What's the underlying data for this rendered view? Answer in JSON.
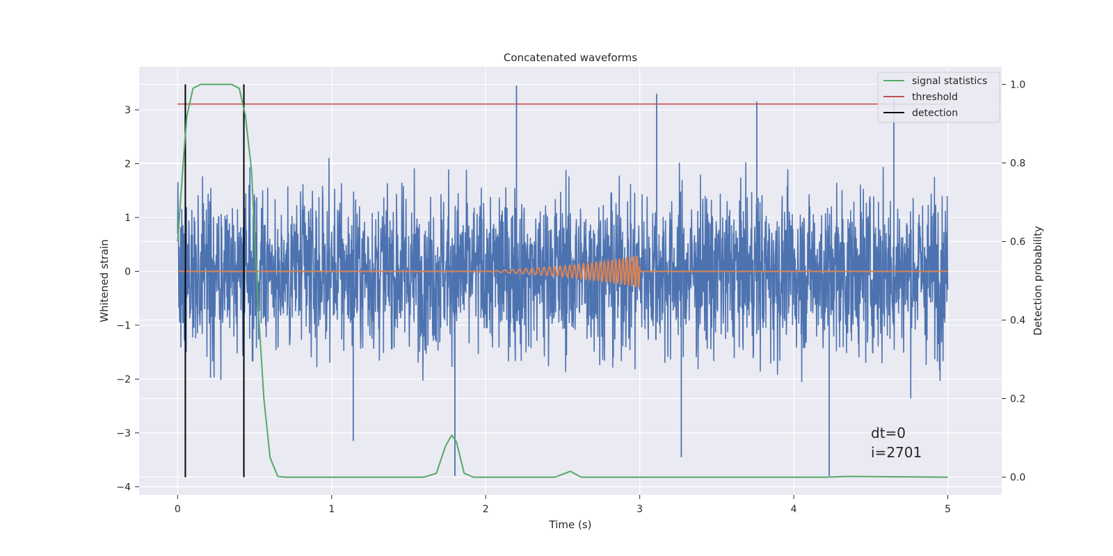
{
  "chart_data": {
    "type": "line",
    "title": "Concatenated waveforms",
    "xlabel": "Time (s)",
    "ylabel_left": "Whitened strain",
    "ylabel_right": "Detection probability",
    "xlim": [
      -0.25,
      5.35
    ],
    "ylim_left": [
      -4.15,
      3.8
    ],
    "ylim_right": [
      -0.045,
      1.045
    ],
    "xticks": [
      0,
      1,
      2,
      3,
      4,
      5
    ],
    "xtick_labels": [
      "0",
      "1",
      "2",
      "3",
      "4",
      "5"
    ],
    "yticks_left": [
      -4,
      -3,
      -2,
      -1,
      0,
      1,
      2,
      3
    ],
    "ytick_labels_left": [
      "−4",
      "−3",
      "−2",
      "−1",
      "0",
      "1",
      "2",
      "3"
    ],
    "yticks_right": [
      0.0,
      0.2,
      0.4,
      0.6,
      0.8,
      1.0
    ],
    "ytick_labels_right": [
      "0.0",
      "0.2",
      "0.4",
      "0.6",
      "0.8",
      "1.0"
    ],
    "grid": true,
    "legend_position": "top-right",
    "annotation": [
      "dt=0",
      "i=2701"
    ],
    "series": [
      {
        "name": "",
        "axis": "left",
        "color": "#4c72b0",
        "kind": "whitened strain noise",
        "x_range": [
          0,
          5
        ],
        "typical_range": [
          -2.5,
          2.6
        ],
        "notable_peaks": [
          {
            "x": 2.2,
            "y": 3.45
          },
          {
            "x": 3.11,
            "y": 3.3
          },
          {
            "x": 3.76,
            "y": 3.15
          },
          {
            "x": 4.65,
            "y": 3.2
          },
          {
            "x": 1.14,
            "y": -3.15
          },
          {
            "x": 1.8,
            "y": -3.8
          },
          {
            "x": 3.27,
            "y": -3.45
          },
          {
            "x": 4.23,
            "y": -3.8
          }
        ]
      },
      {
        "name": "",
        "axis": "left",
        "color": "#dd8452",
        "kind": "injected chirp",
        "points": [
          {
            "x": 0,
            "y": 0
          },
          {
            "x": 2.0,
            "y": 0
          },
          {
            "x": 2.5,
            "y": 0.1
          },
          {
            "x": 2.8,
            "y": 0.2
          },
          {
            "x": 3.0,
            "y": 0.3
          },
          {
            "x": 5,
            "y": 0
          }
        ]
      },
      {
        "name": "signal statistics",
        "axis": "right",
        "color": "#55a868",
        "points": [
          {
            "x": 0,
            "y": 0.6
          },
          {
            "x": 0.04,
            "y": 0.82
          },
          {
            "x": 0.06,
            "y": 0.92
          },
          {
            "x": 0.1,
            "y": 0.99
          },
          {
            "x": 0.15,
            "y": 1.0
          },
          {
            "x": 0.35,
            "y": 1.0
          },
          {
            "x": 0.4,
            "y": 0.99
          },
          {
            "x": 0.44,
            "y": 0.92
          },
          {
            "x": 0.48,
            "y": 0.78
          },
          {
            "x": 0.52,
            "y": 0.45
          },
          {
            "x": 0.56,
            "y": 0.2
          },
          {
            "x": 0.6,
            "y": 0.05
          },
          {
            "x": 0.65,
            "y": 0.002
          },
          {
            "x": 0.7,
            "y": 0.0
          },
          {
            "x": 1.6,
            "y": 0.0
          },
          {
            "x": 1.68,
            "y": 0.01
          },
          {
            "x": 1.74,
            "y": 0.08
          },
          {
            "x": 1.78,
            "y": 0.107
          },
          {
            "x": 1.81,
            "y": 0.09
          },
          {
            "x": 1.86,
            "y": 0.01
          },
          {
            "x": 1.92,
            "y": 0.0
          },
          {
            "x": 2.45,
            "y": 0.0
          },
          {
            "x": 2.55,
            "y": 0.015
          },
          {
            "x": 2.62,
            "y": 0.0
          },
          {
            "x": 4.2,
            "y": 0.0
          },
          {
            "x": 4.35,
            "y": 0.002
          },
          {
            "x": 5.0,
            "y": 0.0
          }
        ]
      },
      {
        "name": "threshold",
        "axis": "right",
        "color": "#c44e52",
        "points": [
          {
            "x": 0,
            "y": 0.95
          },
          {
            "x": 5,
            "y": 0.95
          }
        ]
      },
      {
        "name": "detection",
        "axis": "right",
        "color": "#000000",
        "vertical_lines": [
          {
            "x": 0.05,
            "y": [
              0.0,
              1.0
            ]
          },
          {
            "x": 0.43,
            "y": [
              0.0,
              1.0
            ]
          }
        ]
      }
    ]
  }
}
